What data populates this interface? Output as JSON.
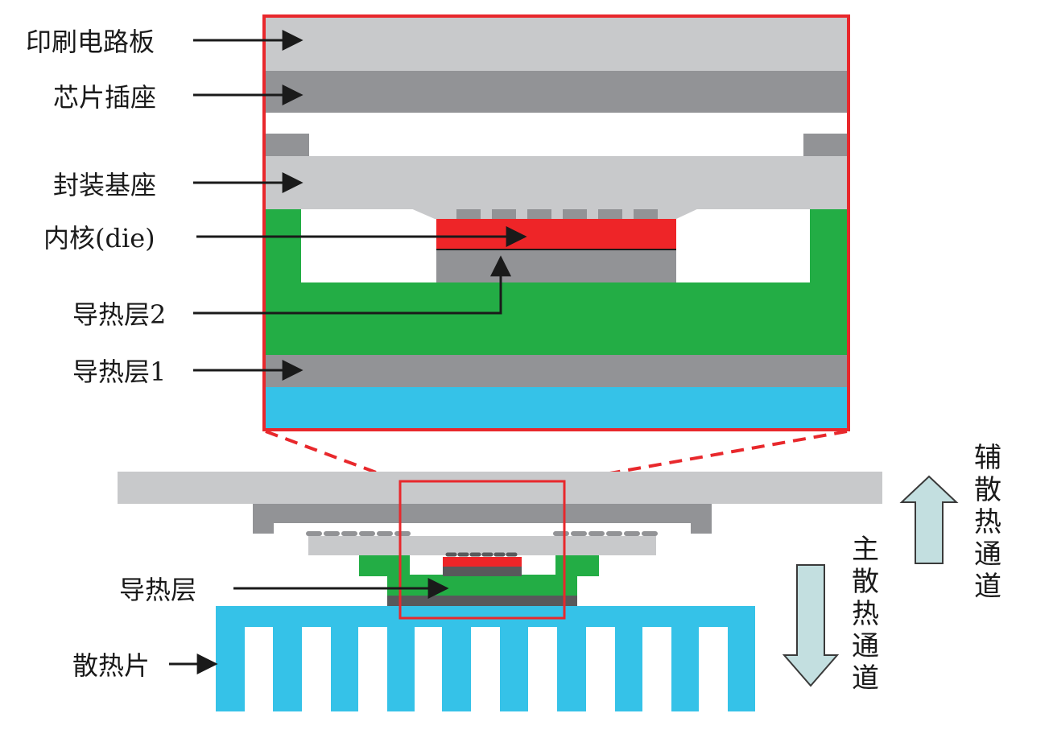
{
  "colors": {
    "pcb": "#c8c9cb",
    "socket": "#929396",
    "substrate": "#c8c9cb",
    "die": "#ee2528",
    "thermal_layer_green": "#23ad45",
    "dark_gray": "#58595b",
    "heatsink": "#35c2e8",
    "frame": "#e8282c",
    "arrow_fill": "#c3dfe0",
    "arrow_stroke": "#3a3a3a"
  },
  "detail_labels": {
    "pcb": "印刷电路板",
    "socket": "芯片插座",
    "package_substrate": "封装基座",
    "die": "内核(die)",
    "thermal_layer_2": "导热层2",
    "thermal_layer_1": "导热层1"
  },
  "overview_labels": {
    "thermal_layer": "导热层",
    "heatsink": "散热片"
  },
  "paths": {
    "auxiliary": "辅散热通道",
    "main": "主散热通道"
  },
  "icons": {
    "label_pointer": "arrow-right-icon",
    "up_arrow": "hollow-up-arrow-icon",
    "down_arrow": "hollow-down-arrow-icon"
  }
}
